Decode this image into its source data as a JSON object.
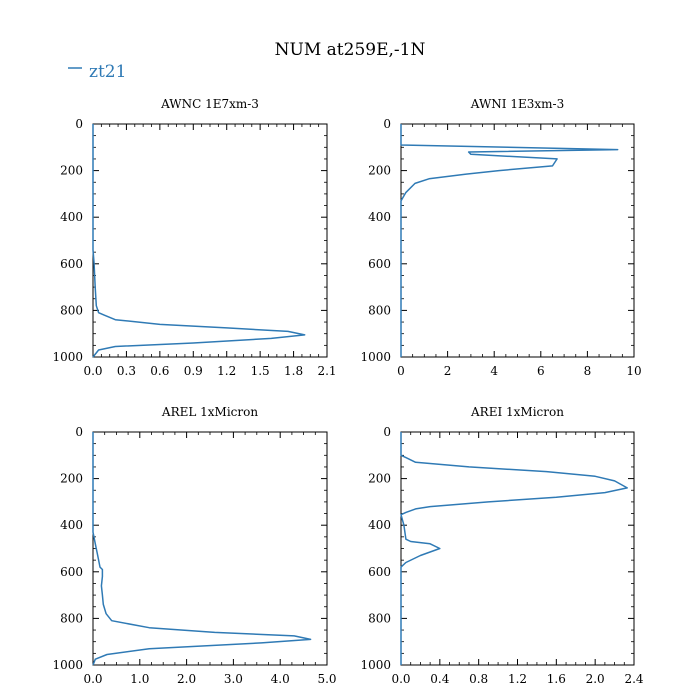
{
  "figure": {
    "title": "NUM at259E,-1N",
    "legend": {
      "label": "zt21",
      "color": "#2f7ab5"
    }
  },
  "chart_data": [
    {
      "type": "line",
      "title": "AWNC  1E7xm-3",
      "xlim": [
        0,
        2.1
      ],
      "ylim": [
        1000,
        0
      ],
      "xticks": [
        "0.0",
        "0.3",
        "0.6",
        "0.9",
        "1.2",
        "1.5",
        "1.8",
        "2.1"
      ],
      "xtick_values": [
        0,
        0.3,
        0.6,
        0.9,
        1.2,
        1.5,
        1.8,
        2.1
      ],
      "yticks": [
        "0",
        "200",
        "400",
        "600",
        "800",
        "1000"
      ],
      "ytick_values": [
        0,
        200,
        400,
        600,
        800,
        1000
      ],
      "series": [
        {
          "x": [
            0,
            0,
            0.01,
            0.02,
            0.03,
            0.05,
            0.1,
            0.2,
            0.6,
            1.2,
            1.75,
            1.9,
            1.6,
            0.9,
            0.2,
            0.05,
            0
          ],
          "y": [
            0,
            540,
            600,
            700,
            780,
            810,
            820,
            840,
            860,
            875,
            890,
            905,
            920,
            940,
            955,
            970,
            1000
          ]
        }
      ]
    },
    {
      "type": "line",
      "title": "AWNI  1E3xm-3",
      "xlim": [
        0,
        10
      ],
      "ylim": [
        1000,
        0
      ],
      "xticks": [
        "0",
        "2",
        "4",
        "6",
        "8",
        "10"
      ],
      "xtick_values": [
        0,
        2,
        4,
        6,
        8,
        10
      ],
      "yticks": [
        "0",
        "200",
        "400",
        "600",
        "800",
        "1000"
      ],
      "ytick_values": [
        0,
        200,
        400,
        600,
        800,
        1000
      ],
      "series": [
        {
          "x": [
            0,
            0,
            9.3,
            2.9,
            3.0,
            6.7,
            6.5,
            4.2,
            2.8,
            1.2,
            0.6,
            0.2,
            0,
            0
          ],
          "y": [
            0,
            90,
            110,
            120,
            130,
            150,
            180,
            200,
            215,
            235,
            255,
            295,
            330,
            1000
          ]
        }
      ]
    },
    {
      "type": "line",
      "title": "AREL  1xMicron",
      "xlim": [
        0,
        5
      ],
      "ylim": [
        1000,
        0
      ],
      "xticks": [
        "0.0",
        "1.0",
        "2.0",
        "3.0",
        "4.0",
        "5.0"
      ],
      "xtick_values": [
        0,
        1,
        2,
        3,
        4,
        5
      ],
      "yticks": [
        "0",
        "200",
        "400",
        "600",
        "800",
        "1000"
      ],
      "ytick_values": [
        0,
        200,
        400,
        600,
        800,
        1000
      ],
      "series": [
        {
          "x": [
            0,
            0,
            0.05,
            0.1,
            0.15,
            0.2,
            0.2,
            0.18,
            0.2,
            0.22,
            0.28,
            0.4,
            1.2,
            2.6,
            4.3,
            4.65,
            3.6,
            1.2,
            0.3,
            0.05,
            0
          ],
          "y": [
            0,
            430,
            480,
            530,
            580,
            590,
            620,
            660,
            700,
            740,
            780,
            810,
            840,
            860,
            875,
            890,
            905,
            930,
            955,
            975,
            1000
          ]
        }
      ]
    },
    {
      "type": "line",
      "title": "AREI  1xMicron",
      "xlim": [
        0,
        2.4
      ],
      "ylim": [
        1000,
        0
      ],
      "xticks": [
        "0.0",
        "0.4",
        "0.8",
        "1.2",
        "1.6",
        "2.0",
        "2.4"
      ],
      "xtick_values": [
        0,
        0.4,
        0.8,
        1.2,
        1.6,
        2.0,
        2.4
      ],
      "yticks": [
        "0",
        "200",
        "400",
        "600",
        "800",
        "1000"
      ],
      "ytick_values": [
        0,
        200,
        400,
        600,
        800,
        1000
      ],
      "series": [
        {
          "x": [
            0,
            0,
            0.05,
            0.15,
            0.7,
            1.5,
            2.0,
            2.2,
            2.33,
            2.1,
            1.6,
            0.9,
            0.3,
            0.15,
            0.05,
            0,
            0.03,
            0.05,
            0.1,
            0.3,
            0.4,
            0.2,
            0.05,
            0,
            0
          ],
          "y": [
            0,
            100,
            110,
            130,
            150,
            170,
            190,
            210,
            240,
            260,
            280,
            300,
            320,
            330,
            345,
            355,
            400,
            460,
            470,
            480,
            500,
            530,
            560,
            580,
            1000
          ]
        }
      ]
    }
  ]
}
